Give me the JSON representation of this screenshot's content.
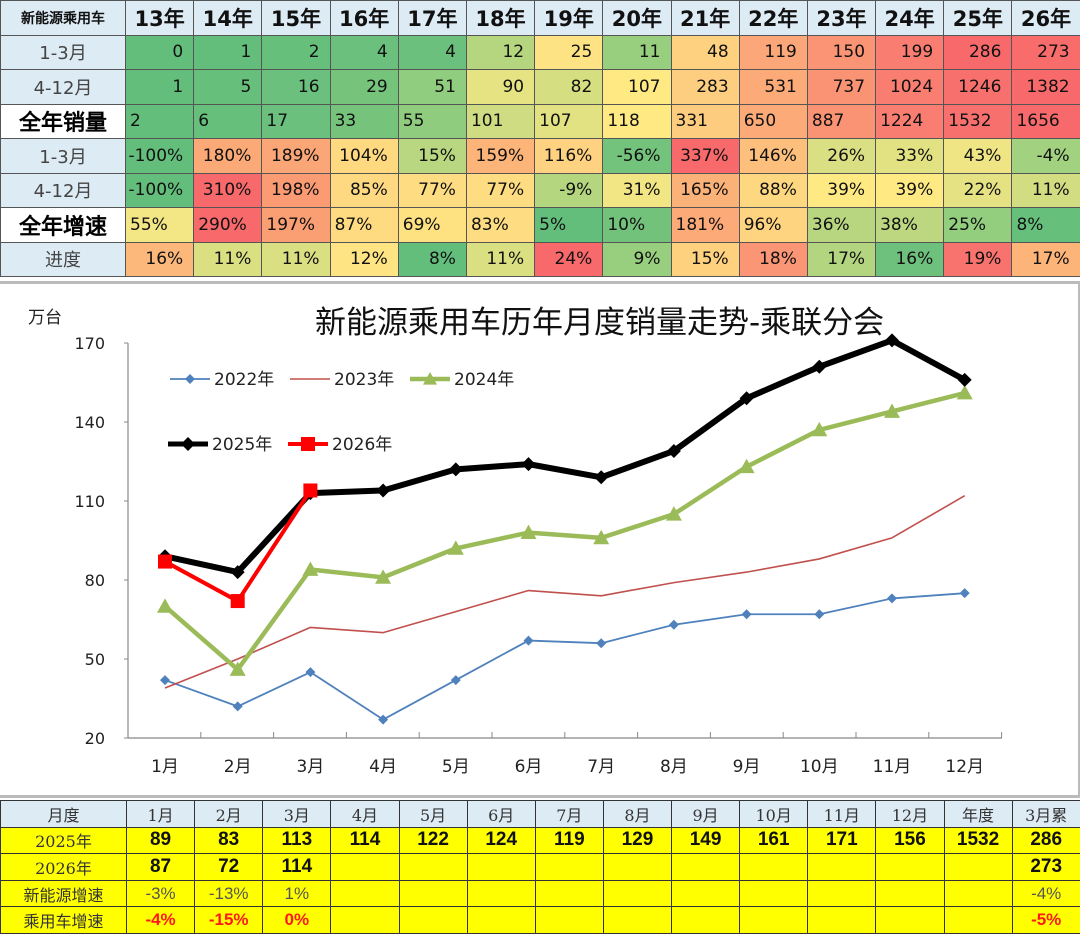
{
  "summary_table": {
    "corner_label": "新能源乘用车",
    "years": [
      "13年",
      "14年",
      "15年",
      "16年",
      "17年",
      "18年",
      "19年",
      "20年",
      "21年",
      "22年",
      "23年",
      "24年",
      "25年",
      "26年"
    ],
    "rows": [
      {
        "label": "1-3月",
        "bold": false,
        "align": "right",
        "values": [
          "0",
          "1",
          "2",
          "4",
          "4",
          "12",
          "25",
          "11",
          "48",
          "119",
          "150",
          "199",
          "286",
          "273"
        ],
        "colors": [
          "#63be7b",
          "#63be7b",
          "#66bf7b",
          "#6ac07c",
          "#6ac07c",
          "#b5d67f",
          "#fde383",
          "#98cf7e",
          "#fed180",
          "#fba77a",
          "#fa9475",
          "#f97d71",
          "#f8696b",
          "#f86c6b"
        ]
      },
      {
        "label": "4-12月",
        "bold": false,
        "align": "right",
        "values": [
          "1",
          "5",
          "16",
          "29",
          "51",
          "90",
          "82",
          "107",
          "283",
          "531",
          "737",
          "1024",
          "1246",
          "1382"
        ],
        "colors": [
          "#63be7b",
          "#66bf7b",
          "#6ac07c",
          "#76c47c",
          "#90cd7e",
          "#e6e383",
          "#d6de82",
          "#fee983",
          "#fdce7f",
          "#fbaa78",
          "#fa9274",
          "#f97d70",
          "#f8706d",
          "#f8696b"
        ]
      },
      {
        "label": "全年销量",
        "bold": true,
        "align": "left",
        "values": [
          "2",
          "6",
          "17",
          "33",
          "55",
          "101",
          "107",
          "118",
          "331",
          "650",
          "887",
          "1224",
          "1532",
          "1656"
        ],
        "colors": [
          "#63be7b",
          "#66bf7b",
          "#6ac07c",
          "#76c47c",
          "#8fcc7e",
          "#cfdc81",
          "#e3e283",
          "#fee983",
          "#fdcc7e",
          "#fbaa78",
          "#fa9374",
          "#f97e71",
          "#f8706d",
          "#f8696b"
        ]
      },
      {
        "label": "1-3月",
        "bold": false,
        "align": "right",
        "values": [
          "-100%",
          "180%",
          "189%",
          "104%",
          "15%",
          "159%",
          "116%",
          "-56%",
          "337%",
          "146%",
          "26%",
          "33%",
          "43%",
          "-4%"
        ],
        "colors": [
          "#63be7b",
          "#fbaa77",
          "#fba677",
          "#fed980",
          "#b9d780",
          "#fcb479",
          "#fed280",
          "#74c37c",
          "#f8696b",
          "#fdc07c",
          "#d9df82",
          "#e3e283",
          "#f0e584",
          "#a2d17f"
        ]
      },
      {
        "label": "4-12月",
        "bold": false,
        "align": "right",
        "values": [
          "-100%",
          "310%",
          "198%",
          "85%",
          "77%",
          "77%",
          "-9%",
          "31%",
          "165%",
          "88%",
          "39%",
          "39%",
          "22%",
          "11%"
        ],
        "colors": [
          "#63be7b",
          "#f8696b",
          "#fa9b74",
          "#fed981",
          "#fedc81",
          "#fedc81",
          "#b3d67f",
          "#f1e584",
          "#fbb278",
          "#fed880",
          "#fee983",
          "#fee983",
          "#e4e283",
          "#d2dd82"
        ]
      },
      {
        "label": "全年增速",
        "bold": true,
        "align": "left",
        "values": [
          "55%",
          "290%",
          "197%",
          "87%",
          "69%",
          "83%",
          "5%",
          "10%",
          "181%",
          "96%",
          "36%",
          "38%",
          "25%",
          "8%"
        ],
        "colors": [
          "#f2e685",
          "#f8696b",
          "#fa9e74",
          "#fedb81",
          "#fee282",
          "#fedc81",
          "#63be7b",
          "#72c27c",
          "#fbaa78",
          "#fed480",
          "#b8d67f",
          "#bdd780",
          "#93cd7e",
          "#66bf7b"
        ]
      },
      {
        "label": "进度",
        "bold": false,
        "align": "right",
        "values": [
          "16%",
          "11%",
          "11%",
          "12%",
          "8%",
          "11%",
          "24%",
          "9%",
          "15%",
          "18%",
          "17%",
          "16%",
          "19%",
          "17%"
        ],
        "colors": [
          "#fcb77a",
          "#dadf82",
          "#dadf82",
          "#fee482",
          "#63be7b",
          "#dadf82",
          "#f8696b",
          "#98cf7e",
          "#fed17f",
          "#fa9575",
          "#b3d57f",
          "#6ec17c",
          "#f8736d",
          "#fcb479"
        ]
      }
    ]
  },
  "chart": {
    "title": "新能源乘用车历年月度销量走势-乘联分会",
    "unit_label": "万台",
    "legend": [
      {
        "name": "2022年",
        "color": "#4f81bd",
        "marker": "diamond"
      },
      {
        "name": "2023年",
        "color": "#c0504d",
        "marker": "none"
      },
      {
        "name": "2024年",
        "color": "#9bbb59",
        "marker": "triangle"
      },
      {
        "name": "2025年",
        "color": "#000000",
        "marker": "diamond"
      },
      {
        "name": "2026年",
        "color": "#ff0000",
        "marker": "square"
      }
    ]
  },
  "chart_data": {
    "type": "line",
    "title": "新能源乘用车历年月度销量走势-乘联分会",
    "xlabel": "",
    "ylabel": "万台",
    "ylim": [
      20,
      170
    ],
    "yticks": [
      20,
      50,
      80,
      110,
      140,
      170
    ],
    "categories": [
      "1月",
      "2月",
      "3月",
      "4月",
      "5月",
      "6月",
      "7月",
      "8月",
      "9月",
      "10月",
      "11月",
      "12月"
    ],
    "grid": false,
    "legend_position": "top-left inside",
    "series": [
      {
        "name": "2022年",
        "values": [
          42,
          32,
          45,
          27,
          42,
          57,
          56,
          63,
          67,
          67,
          73,
          75
        ]
      },
      {
        "name": "2023年",
        "values": [
          39,
          50,
          62,
          60,
          68,
          76,
          74,
          79,
          83,
          88,
          96,
          112
        ]
      },
      {
        "name": "2024年",
        "values": [
          70,
          46,
          84,
          81,
          92,
          98,
          96,
          105,
          123,
          137,
          144,
          151
        ]
      },
      {
        "name": "2025年",
        "values": [
          89,
          83,
          113,
          114,
          122,
          124,
          119,
          129,
          149,
          161,
          171,
          156
        ]
      },
      {
        "name": "2026年",
        "values": [
          87,
          72,
          114
        ]
      }
    ]
  },
  "monthly_table": {
    "headers": [
      "月度",
      "1月",
      "2月",
      "3月",
      "4月",
      "5月",
      "6月",
      "7月",
      "8月",
      "9月",
      "10月",
      "11月",
      "12月",
      "年度",
      "3月累"
    ],
    "rows": [
      {
        "label": "2025年",
        "style": "bold",
        "values": [
          "89",
          "83",
          "113",
          "114",
          "122",
          "124",
          "119",
          "129",
          "149",
          "161",
          "171",
          "156",
          "1532",
          "286"
        ]
      },
      {
        "label": "2026年",
        "style": "bold",
        "values": [
          "87",
          "72",
          "114",
          "",
          "",
          "",
          "",
          "",
          "",
          "",
          "",
          "",
          "",
          "273"
        ]
      },
      {
        "label": "新能源增速",
        "style": "gray",
        "values": [
          "-3%",
          "-13%",
          "1%",
          "",
          "",
          "",
          "",
          "",
          "",
          "",
          "",
          "",
          "",
          "-4%"
        ]
      },
      {
        "label": "乘用车增速",
        "style": "red",
        "values": [
          "-4%",
          "-15%",
          "0%",
          "",
          "",
          "",
          "",
          "",
          "",
          "",
          "",
          "",
          "",
          "-5%"
        ]
      }
    ]
  }
}
